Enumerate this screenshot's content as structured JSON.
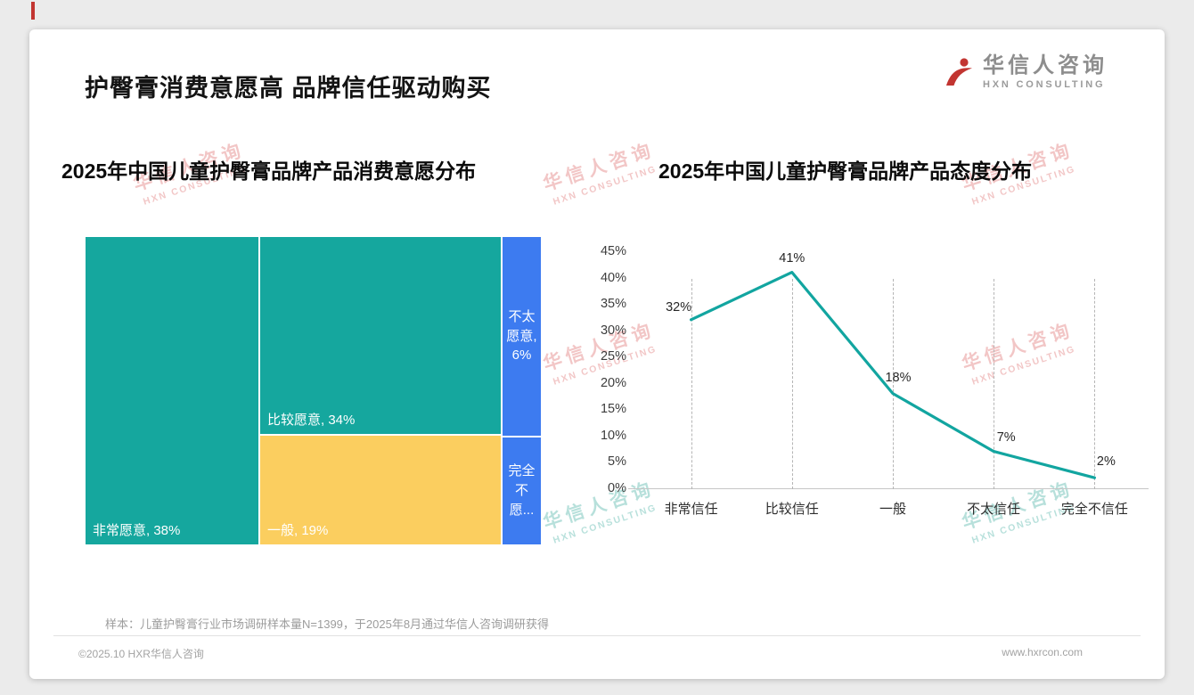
{
  "header": {
    "title": "护臀膏消费意愿高 品牌信任驱动购买",
    "logo": {
      "cn": "华信人咨询",
      "en": "HXN CONSULTING"
    }
  },
  "watermark": {
    "cn": "华信人咨询",
    "en": "HXN CONSULTING"
  },
  "chart_data": [
    {
      "type": "treemap",
      "title": "2025年中国儿童护臀膏品牌产品消费意愿分布",
      "segments": [
        {
          "label": "非常愿意",
          "value_pct": 38,
          "display": "非常愿意, 38%",
          "color": "#15A79E"
        },
        {
          "label": "比较愿意",
          "value_pct": 34,
          "display": "比较愿意, 34%",
          "color": "#15A79E"
        },
        {
          "label": "一般",
          "value_pct": 19,
          "display": "一般, 19%",
          "color": "#FBCE5F"
        },
        {
          "label": "不太愿意",
          "value_pct": 6,
          "display": "不太愿意, 6%",
          "color": "#3D7BF0"
        },
        {
          "label": "完全不愿意",
          "value_pct": null,
          "display": "完全不愿...",
          "color": "#3D7BF0"
        }
      ]
    },
    {
      "type": "line",
      "title": "2025年中国儿童护臀膏品牌产品态度分布",
      "categories": [
        "非常信任",
        "比较信任",
        "一般",
        "不太信任",
        "完全不信任"
      ],
      "values": [
        32,
        41,
        18,
        7,
        2
      ],
      "point_labels": [
        "32%",
        "41%",
        "18%",
        "7%",
        "2%"
      ],
      "ylim": [
        0,
        45
      ],
      "ytick_step": 5,
      "yticks": [
        "0%",
        "5%",
        "10%",
        "15%",
        "20%",
        "25%",
        "30%",
        "35%",
        "40%",
        "45%"
      ],
      "line_color": "#12A5A0",
      "grid": "dashed-vertical",
      "legend": "none"
    }
  ],
  "footer": {
    "note": "样本：儿童护臀膏行业市场调研样本量N=1399，于2025年8月通过华信人咨询调研获得",
    "copyright": "©2025.10 HXR华信人咨询",
    "website": "www.hxrcon.com"
  },
  "colors": {
    "teal": "#15A79E",
    "yellow": "#FBCE5F",
    "blue": "#3D7BF0",
    "accent_red": "#C23531",
    "card_bg": "#FFFFFF",
    "page_bg": "#EBEBEB"
  }
}
